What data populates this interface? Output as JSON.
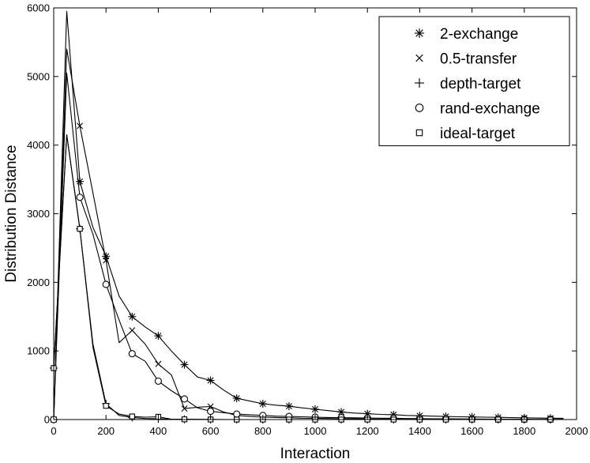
{
  "chart_data": {
    "type": "line",
    "title": "",
    "xlabel": "Interaction",
    "ylabel": "Distribution Distance",
    "xlim": [
      0,
      2000
    ],
    "ylim": [
      0,
      6000
    ],
    "xticks": [
      0,
      200,
      400,
      600,
      800,
      1000,
      1200,
      1400,
      1600,
      1800,
      2000
    ],
    "yticks": [
      0,
      1000,
      2000,
      3000,
      4000,
      5000,
      6000
    ],
    "grid": false,
    "legend_position": "top-right",
    "series": [
      {
        "name": "2-exchange",
        "marker": "asterisk",
        "line": {
          "x": [
            0,
            50,
            100,
            150,
            200,
            250,
            300,
            350,
            400,
            450,
            500,
            550,
            600,
            650,
            700,
            750,
            800,
            850,
            900,
            950,
            1000,
            1050,
            1100,
            1150,
            1200,
            1250,
            1300,
            1350,
            1400,
            1450,
            1500,
            1550,
            1600,
            1650,
            1700,
            1750,
            1800,
            1850,
            1900,
            1950
          ],
          "y": [
            0,
            5950,
            3470,
            2800,
            2380,
            1800,
            1500,
            1350,
            1220,
            1000,
            800,
            620,
            570,
            430,
            310,
            270,
            230,
            210,
            195,
            170,
            150,
            130,
            110,
            95,
            85,
            75,
            70,
            60,
            55,
            50,
            45,
            40,
            38,
            35,
            32,
            28,
            25,
            22,
            20,
            18
          ]
        },
        "markers": {
          "x": [
            0,
            100,
            200,
            300,
            400,
            500,
            600,
            700,
            800,
            900,
            1000,
            1100,
            1200,
            1300,
            1400,
            1500,
            1600,
            1700,
            1800,
            1900
          ],
          "y": [
            0,
            3470,
            2380,
            1500,
            1220,
            800,
            570,
            310,
            230,
            195,
            150,
            110,
            85,
            70,
            55,
            45,
            38,
            32,
            25,
            20
          ]
        }
      },
      {
        "name": "0.5-transfer",
        "marker": "cross",
        "line": {
          "x": [
            0,
            50,
            100,
            150,
            200,
            250,
            300,
            350,
            400,
            450,
            500,
            550,
            600,
            650,
            700,
            750,
            800,
            850,
            900,
            950,
            1000,
            1050,
            1100,
            1150,
            1200,
            1250,
            1300,
            1350,
            1400,
            1450,
            1500,
            1550,
            1600,
            1650,
            1700,
            1750,
            1800,
            1850,
            1900,
            1950
          ],
          "y": [
            0,
            5400,
            4280,
            3300,
            2320,
            1120,
            1300,
            1100,
            810,
            650,
            160,
            180,
            190,
            110,
            60,
            45,
            35,
            30,
            25,
            20,
            18,
            15,
            12,
            10,
            8,
            6,
            5,
            4,
            3,
            2,
            2,
            1,
            1,
            1,
            0,
            0,
            0,
            0,
            0,
            0
          ]
        },
        "markers": {
          "x": [
            0,
            100,
            200,
            300,
            400,
            500,
            600,
            700,
            800,
            900,
            1000,
            1100,
            1200,
            1300,
            1400,
            1500,
            1600,
            1700,
            1800,
            1900
          ],
          "y": [
            0,
            4280,
            2320,
            1300,
            810,
            160,
            190,
            60,
            35,
            25,
            18,
            12,
            8,
            5,
            3,
            2,
            1,
            0,
            0,
            0
          ]
        }
      },
      {
        "name": "depth-target",
        "marker": "plus",
        "line": {
          "x": [
            0,
            50,
            100,
            150,
            200,
            250,
            300,
            350,
            400,
            450,
            500,
            600,
            700,
            800,
            900,
            1000,
            1100,
            1200,
            1300,
            1400,
            1500,
            1600,
            1700,
            1800,
            1900,
            1950
          ],
          "y": [
            750,
            4150,
            2780,
            1100,
            230,
            60,
            30,
            15,
            10,
            5,
            3,
            1,
            0,
            0,
            0,
            0,
            0,
            0,
            0,
            0,
            0,
            0,
            0,
            0,
            0,
            0
          ]
        },
        "markers": {
          "x": [
            0,
            100,
            200,
            300,
            400,
            500,
            600,
            700,
            800,
            900,
            1000,
            1100,
            1200,
            1300,
            1400,
            1500,
            1600,
            1700,
            1800,
            1900
          ],
          "y": [
            750,
            2780,
            230,
            30,
            10,
            3,
            1,
            0,
            0,
            0,
            0,
            0,
            0,
            0,
            0,
            0,
            0,
            0,
            0,
            0
          ]
        }
      },
      {
        "name": "rand-exchange",
        "marker": "circle",
        "line": {
          "x": [
            0,
            50,
            100,
            150,
            200,
            250,
            300,
            350,
            400,
            450,
            500,
            550,
            600,
            650,
            700,
            750,
            800,
            850,
            900,
            950,
            1000,
            1050,
            1100,
            1150,
            1200,
            1250,
            1300,
            1350,
            1400,
            1450,
            1500,
            1550,
            1600,
            1650,
            1700,
            1750,
            1800,
            1850,
            1900,
            1950
          ],
          "y": [
            0,
            5050,
            3240,
            2700,
            1970,
            1450,
            960,
            850,
            560,
            420,
            300,
            170,
            120,
            100,
            80,
            70,
            60,
            50,
            45,
            40,
            35,
            30,
            28,
            25,
            22,
            20,
            18,
            15,
            14,
            12,
            10,
            9,
            8,
            7,
            6,
            5,
            5,
            4,
            4,
            3
          ]
        },
        "markers": {
          "x": [
            0,
            100,
            200,
            300,
            400,
            500,
            600,
            700,
            800,
            900,
            1000,
            1100,
            1200,
            1300,
            1400,
            1500,
            1600,
            1700,
            1800,
            1900
          ],
          "y": [
            0,
            3240,
            1970,
            960,
            560,
            300,
            120,
            80,
            60,
            45,
            35,
            28,
            22,
            18,
            14,
            10,
            8,
            6,
            5,
            4
          ]
        }
      },
      {
        "name": "ideal-target",
        "marker": "square",
        "line": {
          "x": [
            0,
            50,
            100,
            150,
            200,
            250,
            300,
            350,
            400,
            450,
            500,
            600,
            700,
            800,
            900,
            1000,
            1100,
            1200,
            1300,
            1400,
            1500,
            1600,
            1700,
            1800,
            1900,
            1950
          ],
          "y": [
            750,
            4150,
            2780,
            1050,
            200,
            80,
            45,
            35,
            40,
            5,
            3,
            1,
            0,
            0,
            0,
            0,
            0,
            0,
            0,
            0,
            0,
            0,
            0,
            0,
            0,
            0
          ]
        },
        "markers": {
          "x": [
            0,
            100,
            200,
            300,
            400,
            500,
            600,
            700,
            800,
            900,
            1000,
            1100,
            1200,
            1300,
            1400,
            1500,
            1600,
            1700,
            1800,
            1900
          ],
          "y": [
            750,
            2780,
            200,
            45,
            40,
            3,
            1,
            0,
            0,
            0,
            0,
            0,
            0,
            0,
            0,
            0,
            0,
            0,
            0,
            0
          ]
        }
      }
    ]
  }
}
